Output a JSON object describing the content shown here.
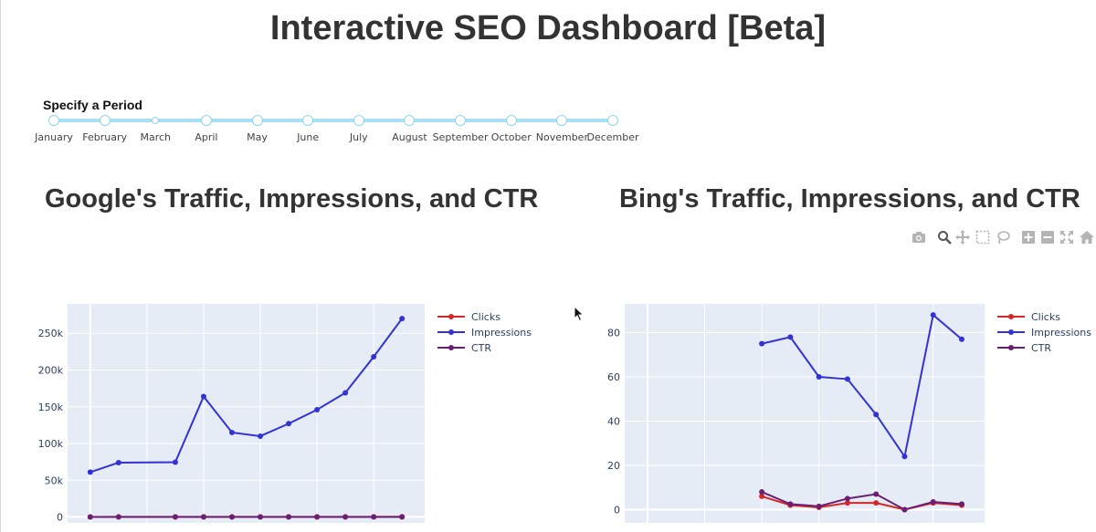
{
  "page": {
    "title": "Interactive SEO Dashboard [Beta]"
  },
  "period_slider": {
    "label": "Specify a Period",
    "months": [
      "January",
      "February",
      "March",
      "April",
      "May",
      "June",
      "July",
      "August",
      "September",
      "October",
      "November",
      "December"
    ]
  },
  "modebar": {
    "icons": [
      "camera-icon",
      "zoom-icon",
      "pan-icon",
      "box-select-icon",
      "lasso-icon",
      "zoom-in-icon",
      "zoom-out-icon",
      "autoscale-icon",
      "reset-axes-icon"
    ]
  },
  "colors": {
    "clicks": "#d62728",
    "impressions": "#3232d6",
    "ctr": "#6a1f73",
    "plot_bg": "#e5ecf6",
    "grid": "#ffffff"
  },
  "chart_data": [
    {
      "type": "line",
      "title": "Google's Traffic, Impressions, and CTR",
      "xlim": [
        -0.8,
        11.8
      ],
      "ylim": [
        -8000,
        290000
      ],
      "xticks": [
        0,
        2,
        4,
        6,
        8,
        10
      ],
      "yticks": [
        0,
        50000,
        100000,
        150000,
        200000,
        250000
      ],
      "ytick_labels": [
        "0",
        "50k",
        "100k",
        "150k",
        "200k",
        "250k"
      ],
      "legend": "top-right",
      "series": [
        {
          "name": "Clicks",
          "x": [
            0,
            1,
            3,
            4,
            5,
            6,
            7,
            8,
            9,
            10,
            11
          ],
          "y": [
            100,
            300,
            200,
            250,
            200,
            200,
            200,
            220,
            250,
            300,
            350
          ]
        },
        {
          "name": "Impressions",
          "x": [
            0,
            1,
            3,
            4,
            5,
            6,
            7,
            8,
            9,
            10,
            11
          ],
          "y": [
            61000,
            74000,
            74500,
            164000,
            115000,
            110000,
            127000,
            146000,
            169000,
            218000,
            270000
          ]
        },
        {
          "name": "CTR",
          "x": [
            0,
            1,
            3,
            4,
            5,
            6,
            7,
            8,
            9,
            10,
            11
          ],
          "y": [
            0.2,
            0.4,
            0.3,
            0.2,
            0.2,
            0.2,
            0.2,
            0.2,
            0.2,
            0.2,
            0.2
          ]
        }
      ]
    },
    {
      "type": "line",
      "title": "Bing's Traffic, Impressions, and CTR",
      "xlim": [
        -0.8,
        11.8
      ],
      "ylim": [
        -6,
        93
      ],
      "xticks": [
        0,
        2,
        4,
        6,
        8,
        10
      ],
      "yticks": [
        0,
        20,
        40,
        60,
        80
      ],
      "ytick_labels": [
        "0",
        "20",
        "40",
        "60",
        "80"
      ],
      "legend": "top-right",
      "series": [
        {
          "name": "Clicks",
          "x": [
            4,
            5,
            6,
            7,
            8,
            9,
            10,
            11
          ],
          "y": [
            6,
            2,
            1,
            3,
            3,
            0,
            3,
            2
          ]
        },
        {
          "name": "Impressions",
          "x": [
            4,
            5,
            6,
            7,
            8,
            9,
            10,
            11
          ],
          "y": [
            75,
            78,
            60,
            59,
            43,
            24,
            88,
            77
          ]
        },
        {
          "name": "CTR",
          "x": [
            4,
            5,
            6,
            7,
            8,
            9,
            10,
            11
          ],
          "y": [
            8,
            2.5,
            1.5,
            5,
            7,
            0,
            3.5,
            2.5
          ]
        }
      ]
    }
  ]
}
